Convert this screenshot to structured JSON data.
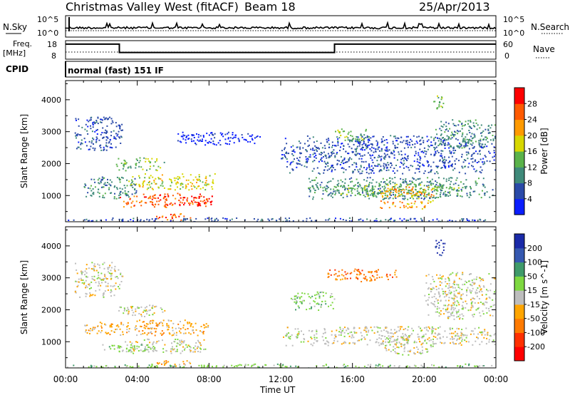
{
  "header": {
    "station": "Christmas Valley West (fitACF)",
    "beam": "Beam 18",
    "date": "25/Apr/2013"
  },
  "noise_panel": {
    "left_label": "N.Sky",
    "right_label": "N.Search",
    "left_ticks": [
      "10^5",
      "10^0"
    ],
    "right_ticks": [
      "10^5",
      "10^0"
    ]
  },
  "freq_panel": {
    "left_label_line1": "Freq.",
    "left_label_line2": "[MHz]",
    "right_label": "Nave",
    "left_ticks": [
      "18",
      "8"
    ],
    "right_ticks": [
      "60",
      "0"
    ],
    "freq_series": [
      {
        "t": 0.0,
        "f": 16.5
      },
      {
        "t": 3.0,
        "f": 16.5
      },
      {
        "t": 3.0,
        "f": 12.0
      },
      {
        "t": 15.0,
        "f": 12.0
      },
      {
        "t": 15.0,
        "f": 16.5
      },
      {
        "t": 24.0,
        "f": 16.5
      }
    ]
  },
  "cpid": {
    "label": "CPID",
    "mode": "normal (fast) 151 IF"
  },
  "chart_data": [
    {
      "type": "heatmap",
      "ylabel": "Slant Range [km]",
      "xlabel": "Time UT",
      "xlim": [
        0,
        24
      ],
      "ylim": [
        180,
        4600
      ],
      "x_ticks": [
        "00:00",
        "04:00",
        "08:00",
        "12:00",
        "16:00",
        "20:00",
        "00:00"
      ],
      "y_ticks": [
        1000,
        2000,
        3000,
        4000
      ],
      "colorbar": {
        "label": "Power [dB]",
        "ticks": [
          "4",
          "8",
          "12",
          "16",
          "20",
          "24",
          "28"
        ],
        "colors": [
          "#0a1eff",
          "#2a4aa8",
          "#3f8a7a",
          "#5ab24a",
          "#d7d700",
          "#ff9a00",
          "#ff5a00",
          "#ff0000"
        ]
      },
      "regions": [
        {
          "t0": 0.5,
          "t1": 3.2,
          "r0": 2400,
          "r1": 3500,
          "level": 1
        },
        {
          "t0": 2.8,
          "t1": 5.5,
          "r0": 1800,
          "r1": 2200,
          "level": 3
        },
        {
          "t0": 1.0,
          "t1": 4.0,
          "r0": 900,
          "r1": 1600,
          "level": 2
        },
        {
          "t0": 3.5,
          "t1": 8.5,
          "r0": 1200,
          "r1": 1700,
          "level": 4
        },
        {
          "t0": 3.0,
          "t1": 8.0,
          "r0": 650,
          "r1": 1100,
          "level": 6
        },
        {
          "t0": 6.0,
          "t1": 8.2,
          "r0": 700,
          "r1": 1000,
          "level": 7
        },
        {
          "t0": 5.0,
          "t1": 7.2,
          "r0": 250,
          "r1": 450,
          "level": 6
        },
        {
          "t0": 0.0,
          "t1": 24.0,
          "r0": 180,
          "r1": 320,
          "level": 1
        },
        {
          "t0": 6.0,
          "t1": 11.0,
          "r0": 2600,
          "r1": 3000,
          "level": 0
        },
        {
          "t0": 13.5,
          "t1": 24.0,
          "r0": 900,
          "r1": 1600,
          "level": 2
        },
        {
          "t0": 14.5,
          "t1": 22.0,
          "r0": 1000,
          "r1": 1400,
          "level": 3
        },
        {
          "t0": 17.5,
          "t1": 20.5,
          "r0": 600,
          "r1": 1300,
          "level": 5
        },
        {
          "t0": 12.0,
          "t1": 24.0,
          "r0": 1700,
          "r1": 2900,
          "level": 1
        },
        {
          "t0": 15.0,
          "t1": 17.0,
          "r0": 2700,
          "r1": 3100,
          "level": 3
        },
        {
          "t0": 20.5,
          "t1": 24.0,
          "r0": 2500,
          "r1": 3400,
          "level": 2
        },
        {
          "t0": 20.5,
          "t1": 21.2,
          "r0": 3700,
          "r1": 4200,
          "level": 3
        }
      ]
    },
    {
      "type": "heatmap",
      "ylabel": "Slant Range [km]",
      "xlabel": "Time UT",
      "xlim": [
        0,
        24
      ],
      "ylim": [
        180,
        4600
      ],
      "x_ticks": [
        "00:00",
        "04:00",
        "08:00",
        "12:00",
        "16:00",
        "20:00",
        "00:00"
      ],
      "y_ticks": [
        1000,
        2000,
        3000,
        4000
      ],
      "colorbar": {
        "label": "Velocity [m s^-1]",
        "ticks": [
          "200",
          "100",
          "50",
          "15",
          "-15",
          "-50",
          "-100",
          "-200"
        ],
        "colors": [
          "#1a2aa8",
          "#3558b0",
          "#3f9a6a",
          "#7ed840",
          "#bdbdbd",
          "#ffa500",
          "#ff7a00",
          "#ff3000",
          "#ff0000"
        ]
      },
      "regions": [
        {
          "t0": 0.5,
          "t1": 3.2,
          "r0": 2400,
          "r1": 3500,
          "level": 4
        },
        {
          "t0": 2.8,
          "t1": 5.5,
          "r0": 1800,
          "r1": 2200,
          "level": 4
        },
        {
          "t0": 1.0,
          "t1": 8.0,
          "r0": 1200,
          "r1": 1700,
          "level": 5
        },
        {
          "t0": 3.0,
          "t1": 8.0,
          "r0": 650,
          "r1": 1100,
          "level": 4
        },
        {
          "t0": 2.0,
          "t1": 5.0,
          "r0": 700,
          "r1": 950,
          "level": 3
        },
        {
          "t0": 5.0,
          "t1": 7.2,
          "r0": 250,
          "r1": 450,
          "level": 5
        },
        {
          "t0": 0.0,
          "t1": 24.0,
          "r0": 180,
          "r1": 320,
          "level": 3
        },
        {
          "t0": 12.0,
          "t1": 24.0,
          "r0": 900,
          "r1": 1500,
          "level": 4
        },
        {
          "t0": 17.5,
          "t1": 20.5,
          "r0": 600,
          "r1": 1200,
          "level": 4
        },
        {
          "t0": 14.5,
          "t1": 18.5,
          "r0": 2900,
          "r1": 3300,
          "level": 6
        },
        {
          "t0": 20.0,
          "t1": 24.0,
          "r0": 1700,
          "r1": 3200,
          "level": 4
        },
        {
          "t0": 12.5,
          "t1": 15.0,
          "r0": 2000,
          "r1": 2600,
          "level": 3
        },
        {
          "t0": 20.5,
          "t1": 21.2,
          "r0": 3700,
          "r1": 4200,
          "level": 0
        }
      ]
    }
  ]
}
